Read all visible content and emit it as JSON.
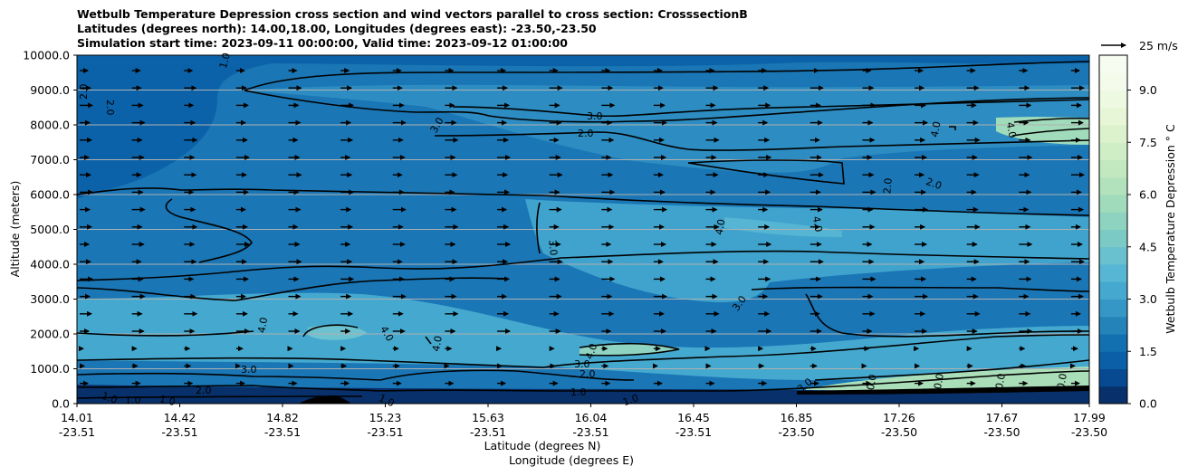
{
  "chart_data": {
    "type": "contour",
    "title_lines": [
      "Wetbulb Temperature Depression cross section and wind vectors parallel to cross section: CrosssectionB",
      "Latitudes (degrees north): 14.00,18.00, Longitudes (degrees east): -23.50,-23.50",
      "Simulation start time: 2023-09-11 00:00:00, Valid time: 2023-09-12 01:00:00"
    ],
    "ylabel": "Altitude (meters)",
    "xlabel_line1": "Latitude (degrees N)",
    "xlabel_line2": "Longitude (degrees E)",
    "ylim": [
      0,
      10000
    ],
    "y_ticks": [
      "0.0",
      "1000.0",
      "2000.0",
      "3000.0",
      "4000.0",
      "5000.0",
      "6000.0",
      "7000.0",
      "8000.0",
      "9000.0",
      "10000.0"
    ],
    "x_ticks": [
      {
        "lat": "14.01",
        "lon": "-23.51"
      },
      {
        "lat": "14.42",
        "lon": "-23.51"
      },
      {
        "lat": "14.82",
        "lon": "-23.51"
      },
      {
        "lat": "15.23",
        "lon": "-23.51"
      },
      {
        "lat": "15.63",
        "lon": "-23.51"
      },
      {
        "lat": "16.04",
        "lon": "-23.51"
      },
      {
        "lat": "16.45",
        "lon": "-23.51"
      },
      {
        "lat": "16.85",
        "lon": "-23.50"
      },
      {
        "lat": "17.26",
        "lon": "-23.50"
      },
      {
        "lat": "17.67",
        "lon": "-23.50"
      },
      {
        "lat": "17.99",
        "lon": "-23.50"
      }
    ],
    "colorbar": {
      "label": "Wetbulb Temperature Depression ° C",
      "range": [
        0,
        10
      ],
      "ticks": [
        "0.0",
        "1.5",
        "3.0",
        "4.5",
        "6.0",
        "7.5",
        "9.0"
      ],
      "levels": 20,
      "palette": [
        "#08306b",
        "#084a91",
        "#0a5fa6",
        "#1370b0",
        "#2484ba",
        "#3597c6",
        "#45a8cf",
        "#56b6d3",
        "#69c0cf",
        "#7ccac6",
        "#8ed3c0",
        "#a0dbbb",
        "#b2e2bb",
        "#c2e8c0",
        "#d0eec6",
        "#dcf2cd",
        "#e6f6d6",
        "#eef9e1",
        "#f4fbeb",
        "#f7fcf0"
      ]
    },
    "quiver_key": "25 m/s",
    "contour_labels": [
      "1.0",
      "2.0",
      "3.0",
      "4.0",
      "0.0"
    ],
    "grid": "horizontal"
  }
}
